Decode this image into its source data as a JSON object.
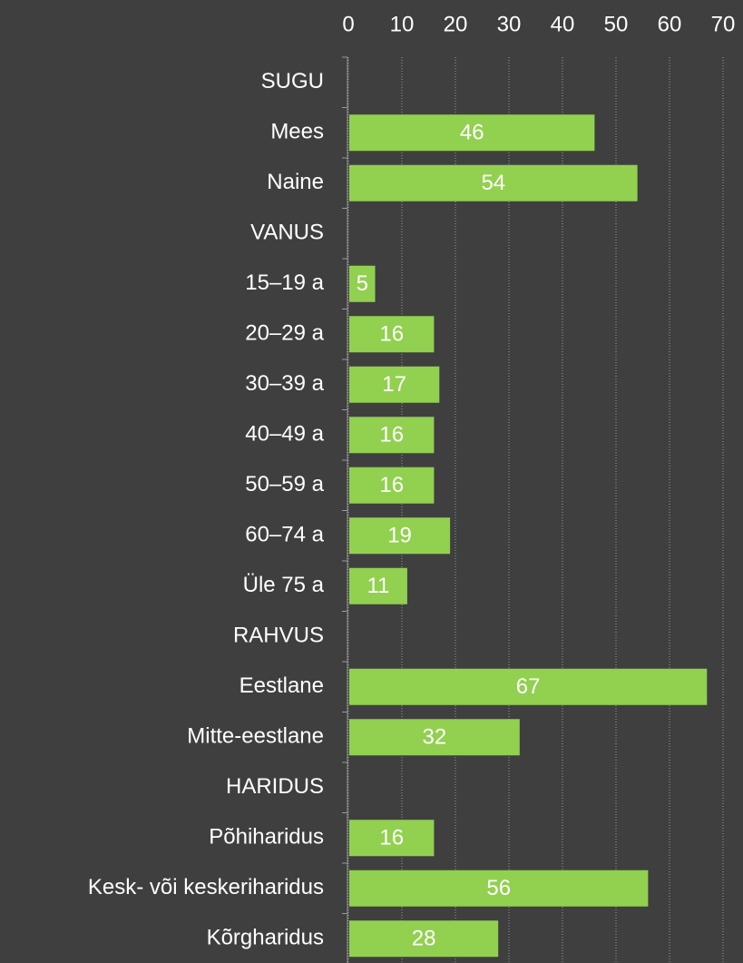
{
  "chart_data": {
    "type": "barh",
    "categories": [
      "SUGU",
      "Mees",
      "Naine",
      "VANUS",
      "15–19 a",
      "20–29 a",
      "30–39 a",
      "40–49 a",
      "50–59 a",
      "60–74 a",
      "Üle 75 a",
      "RAHVUS",
      "Eestlane",
      "Mitte-eestlane",
      "HARIDUS",
      "Põhiharidus",
      "Kesk- või keskeriharidus",
      "Kõrgharidus"
    ],
    "values": [
      null,
      46,
      54,
      null,
      5,
      16,
      17,
      16,
      16,
      19,
      11,
      null,
      67,
      32,
      null,
      16,
      56,
      28
    ],
    "color": "#92d050",
    "xlim": [
      0,
      70
    ],
    "xticks": [
      0,
      10,
      20,
      30,
      40,
      50,
      60,
      70
    ],
    "grid": true
  }
}
